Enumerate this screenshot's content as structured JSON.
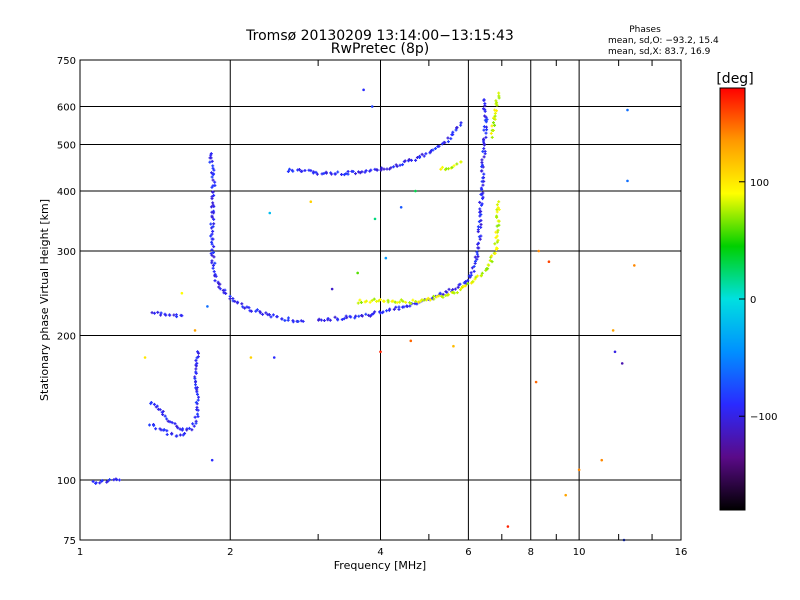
{
  "chart_data": {
    "type": "scatter",
    "title": "Tromsø 20130209 13:14:00−13:15:43",
    "subtitle": "RwPretec (8p)",
    "xlabel": "Frequency [MHz]",
    "ylabel": "Stationary phase Virtual Height [km]",
    "xscale": "log",
    "yscale": "log",
    "xlim": [
      1,
      16
    ],
    "ylim": [
      75,
      750
    ],
    "x_ticks": [
      1,
      2,
      4,
      6,
      8,
      10,
      16
    ],
    "x_tick_labels": [
      "1",
      "2",
      "4",
      "6",
      "8",
      "10",
      "16"
    ],
    "x_minor_ticks": [
      3,
      5,
      7,
      9,
      12,
      14
    ],
    "y_ticks": [
      75,
      100,
      200,
      300,
      400,
      500,
      600,
      750
    ],
    "y_tick_labels": [
      "75",
      "100",
      "200",
      "300",
      "400",
      "500",
      "600",
      "750"
    ],
    "grid": true,
    "legend": {
      "title": "Phases",
      "line1": "mean, sd,O: −93.2, 15.4",
      "line2": "mean, sd,X: 83.7, 16.9",
      "placement": "top-right"
    },
    "colorbar": {
      "label": "[deg]",
      "ticks": [
        100,
        0,
        -100
      ],
      "tick_labels": [
        "100",
        "0",
        "−100"
      ],
      "range": [
        -180,
        180
      ],
      "colormap": [
        "#000000",
        "#5a0a88",
        "#2a2aff",
        "#0090ff",
        "#00e0e0",
        "#00d000",
        "#ffff00",
        "#ff9900",
        "#ff0000"
      ]
    },
    "series": [
      {
        "name": "O",
        "color_phase": -93.2,
        "note": "",
        "traces": [
          [
            [
              1.06,
              99
            ],
            [
              1.1,
              99
            ],
            [
              1.15,
              100
            ],
            [
              1.2,
              100
            ]
          ],
          [
            [
              1.38,
              145
            ],
            [
              1.45,
              140
            ],
            [
              1.5,
              133
            ],
            [
              1.58,
              128
            ],
            [
              1.68,
              128
            ],
            [
              1.72,
              136
            ],
            [
              1.72,
              150
            ],
            [
              1.7,
              168
            ],
            [
              1.72,
              185
            ]
          ],
          [
            [
              1.38,
              130
            ],
            [
              1.45,
              128
            ],
            [
              1.5,
              125
            ],
            [
              1.55,
              124
            ],
            [
              1.62,
              125
            ]
          ],
          [
            [
              1.4,
              222
            ],
            [
              1.48,
              222
            ],
            [
              1.55,
              220
            ],
            [
              1.6,
              220
            ]
          ],
          [
            [
              1.82,
              480
            ],
            [
              1.85,
              430
            ],
            [
              1.85,
              380
            ],
            [
              1.84,
              340
            ],
            [
              1.84,
              300
            ],
            [
              1.86,
              270
            ],
            [
              1.9,
              252
            ],
            [
              2.0,
              240
            ],
            [
              2.15,
              228
            ],
            [
              2.35,
              222
            ],
            [
              2.6,
              216
            ],
            [
              2.8,
              214
            ]
          ],
          [
            [
              2.6,
              442
            ],
            [
              2.8,
              440
            ],
            [
              3.1,
              435
            ],
            [
              3.4,
              435
            ],
            [
              3.8,
              440
            ],
            [
              4.2,
              448
            ],
            [
              4.6,
              462
            ],
            [
              5.0,
              480
            ],
            [
              5.4,
              505
            ],
            [
              5.7,
              540
            ],
            [
              5.8,
              555
            ]
          ],
          [
            [
              3.0,
              215
            ],
            [
              3.4,
              218
            ],
            [
              3.8,
              221
            ],
            [
              4.2,
              226
            ],
            [
              4.6,
              232
            ],
            [
              5.0,
              238
            ],
            [
              5.3,
              244
            ],
            [
              5.6,
              250
            ],
            [
              5.9,
              258
            ],
            [
              6.1,
              268
            ],
            [
              6.2,
              285
            ],
            [
              6.3,
              310
            ],
            [
              6.35,
              360
            ],
            [
              6.4,
              420
            ],
            [
              6.45,
              490
            ],
            [
              6.5,
              560
            ],
            [
              6.45,
              620
            ]
          ]
        ]
      },
      {
        "name": "X",
        "color_phase": 83.7,
        "note": "",
        "traces": [
          [
            [
              5.3,
              445
            ],
            [
              5.6,
              450
            ],
            [
              5.8,
              460
            ]
          ],
          [
            [
              3.6,
              235
            ],
            [
              4.0,
              237
            ],
            [
              4.6,
              235
            ],
            [
              5.2,
              240
            ],
            [
              5.6,
              245
            ],
            [
              6.0,
              255
            ],
            [
              6.4,
              268
            ],
            [
              6.6,
              282
            ],
            [
              6.8,
              300
            ],
            [
              6.85,
              330
            ],
            [
              6.9,
              380
            ]
          ],
          [
            [
              6.7,
              520
            ],
            [
              6.75,
              560
            ],
            [
              6.8,
              600
            ],
            [
              6.9,
              640
            ]
          ]
        ]
      }
    ],
    "scattered_points": [
      [
        3.7,
        650,
        -90
      ],
      [
        3.85,
        600,
        -80
      ],
      [
        4.4,
        370,
        -70
      ],
      [
        3.9,
        350,
        20
      ],
      [
        3.2,
        250,
        -110
      ],
      [
        3.6,
        270,
        60
      ],
      [
        4.1,
        290,
        -40
      ],
      [
        4.7,
        400,
        30
      ],
      [
        2.4,
        360,
        -20
      ],
      [
        2.9,
        380,
        110
      ],
      [
        8.3,
        300,
        140
      ],
      [
        8.7,
        285,
        160
      ],
      [
        12.5,
        590,
        -60
      ],
      [
        12.5,
        420,
        -60
      ],
      [
        11.8,
        185,
        -100
      ],
      [
        12.2,
        175,
        -120
      ],
      [
        8.2,
        160,
        150
      ],
      [
        10.0,
        105,
        140
      ],
      [
        9.4,
        93,
        130
      ],
      [
        7.2,
        80,
        170
      ],
      [
        4.0,
        185,
        170
      ],
      [
        4.6,
        195,
        150
      ],
      [
        5.6,
        190,
        120
      ],
      [
        1.7,
        205,
        130
      ],
      [
        2.2,
        180,
        110
      ],
      [
        2.45,
        180,
        -90
      ],
      [
        1.35,
        180,
        100
      ],
      [
        1.84,
        110,
        -90
      ],
      [
        1.8,
        230,
        -60
      ],
      [
        1.6,
        245,
        90
      ],
      [
        11.1,
        110,
        140
      ],
      [
        11.7,
        205,
        130
      ],
      [
        12.9,
        280,
        140
      ],
      [
        12.3,
        75,
        -80
      ]
    ]
  }
}
